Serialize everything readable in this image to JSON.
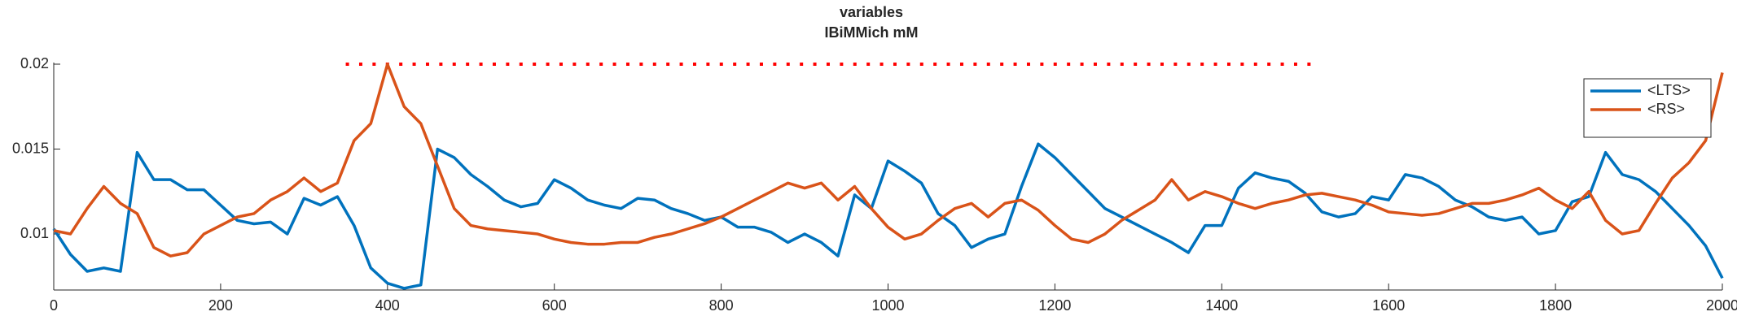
{
  "chart_data": {
    "type": "line",
    "title": "variables",
    "subtitle": "IBiMMich mM",
    "x": [
      0,
      20,
      40,
      60,
      80,
      100,
      120,
      140,
      160,
      180,
      200,
      220,
      240,
      260,
      280,
      300,
      320,
      340,
      360,
      380,
      400,
      420,
      440,
      460,
      480,
      500,
      520,
      540,
      560,
      580,
      600,
      620,
      640,
      660,
      680,
      700,
      720,
      740,
      760,
      780,
      800,
      820,
      840,
      860,
      880,
      900,
      920,
      940,
      960,
      980,
      1000,
      1020,
      1040,
      1060,
      1080,
      1100,
      1120,
      1140,
      1160,
      1180,
      1200,
      1220,
      1240,
      1260,
      1280,
      1300,
      1320,
      1340,
      1360,
      1380,
      1400,
      1420,
      1440,
      1460,
      1480,
      1500,
      1520,
      1540,
      1560,
      1580,
      1600,
      1620,
      1640,
      1660,
      1680,
      1700,
      1720,
      1740,
      1760,
      1780,
      1800,
      1820,
      1840,
      1860,
      1880,
      1900,
      1920,
      1940,
      1960,
      1980,
      2000
    ],
    "series": [
      {
        "name": "<LTS>",
        "color": "#0072bd",
        "values": [
          0.0103,
          0.0088,
          0.0078,
          0.008,
          0.0078,
          0.0148,
          0.0132,
          0.0132,
          0.0126,
          0.0126,
          0.0117,
          0.0108,
          0.0106,
          0.0107,
          0.01,
          0.0121,
          0.0117,
          0.0122,
          0.0105,
          0.008,
          0.0071,
          0.0068,
          0.007,
          0.015,
          0.0145,
          0.0135,
          0.0128,
          0.012,
          0.0116,
          0.0118,
          0.0132,
          0.0127,
          0.012,
          0.0117,
          0.0115,
          0.0121,
          0.012,
          0.0115,
          0.0112,
          0.0108,
          0.011,
          0.0104,
          0.0104,
          0.0101,
          0.0095,
          0.01,
          0.0095,
          0.0087,
          0.0123,
          0.0115,
          0.0143,
          0.0137,
          0.013,
          0.0112,
          0.0105,
          0.0092,
          0.0097,
          0.01,
          0.0128,
          0.0153,
          0.0145,
          0.0135,
          0.0125,
          0.0115,
          0.011,
          0.0105,
          0.01,
          0.0095,
          0.0089,
          0.0105,
          0.0105,
          0.0127,
          0.0136,
          0.0133,
          0.0131,
          0.0124,
          0.0113,
          0.011,
          0.0112,
          0.0122,
          0.012,
          0.0135,
          0.0133,
          0.0128,
          0.012,
          0.0116,
          0.011,
          0.0108,
          0.011,
          0.01,
          0.0102,
          0.0119,
          0.0122,
          0.0148,
          0.0135,
          0.0132,
          0.0125,
          0.0115,
          0.0105,
          0.0093,
          0.0074
        ]
      },
      {
        "name": "<RS>",
        "color": "#d95319",
        "values": [
          0.0102,
          0.01,
          0.0115,
          0.0128,
          0.0118,
          0.0112,
          0.0092,
          0.0087,
          0.0089,
          0.01,
          0.0105,
          0.011,
          0.0112,
          0.012,
          0.0125,
          0.0133,
          0.0125,
          0.013,
          0.0155,
          0.0165,
          0.02,
          0.0175,
          0.0165,
          0.014,
          0.0115,
          0.0105,
          0.0103,
          0.0102,
          0.0101,
          0.01,
          0.0097,
          0.0095,
          0.0094,
          0.0094,
          0.0095,
          0.0095,
          0.0098,
          0.01,
          0.0103,
          0.0106,
          0.011,
          0.0115,
          0.012,
          0.0125,
          0.013,
          0.0127,
          0.013,
          0.012,
          0.0128,
          0.0115,
          0.0104,
          0.0097,
          0.01,
          0.0108,
          0.0115,
          0.0118,
          0.011,
          0.0118,
          0.012,
          0.0114,
          0.0105,
          0.0097,
          0.0095,
          0.01,
          0.0108,
          0.0114,
          0.012,
          0.0132,
          0.012,
          0.0125,
          0.0122,
          0.0118,
          0.0115,
          0.0118,
          0.012,
          0.0123,
          0.0124,
          0.0122,
          0.012,
          0.0117,
          0.0113,
          0.0112,
          0.0111,
          0.0112,
          0.0115,
          0.0118,
          0.0118,
          0.012,
          0.0123,
          0.0127,
          0.012,
          0.0115,
          0.0125,
          0.0108,
          0.01,
          0.0102,
          0.0118,
          0.0133,
          0.0142,
          0.0155,
          0.0195
        ]
      }
    ],
    "hline": {
      "xrange": [
        350,
        1510
      ],
      "value": 0.02,
      "color": "#ff0000"
    },
    "xlim": [
      0,
      2000
    ],
    "xticks": [
      0,
      200,
      400,
      600,
      800,
      1000,
      1200,
      1400,
      1600,
      1800,
      2000
    ],
    "ylim": [
      0.0067,
      0.02
    ],
    "yticks": [
      0.01,
      0.015,
      0.02
    ],
    "legend": "upper-right"
  }
}
